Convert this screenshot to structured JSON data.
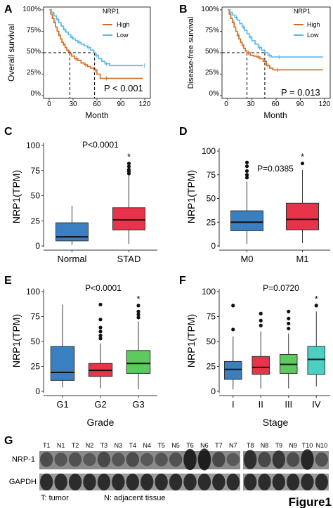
{
  "figure_label": "Figure1",
  "colors": {
    "high": "#d2691e",
    "low": "#5bb8e8",
    "normal": "#3a7fc1",
    "stad": "#e8334a",
    "m0": "#3a7fc1",
    "m1": "#e8334a",
    "g1": "#3a7fc1",
    "g2": "#e8334a",
    "g3": "#5ec95e",
    "stage1": "#3a7fc1",
    "stage2": "#e8334a",
    "stage3": "#5ec95e",
    "stage4": "#4dd0c4"
  },
  "chart_data": [
    {
      "panel": "A",
      "type": "line",
      "title": "",
      "legend_title": "NRP1",
      "legend_placement": "top-right",
      "xlabel": "Month",
      "ylabel": "Overall survival",
      "xlim": [
        0,
        120
      ],
      "ylim": [
        0,
        1
      ],
      "x_ticks": [
        "0",
        "30",
        "60",
        "90",
        "120"
      ],
      "y_ticks": [
        "0%",
        "25%",
        "50%",
        "75%",
        "100%"
      ],
      "annotation": "P < 0.001",
      "median_survival": {
        "High": 26,
        "Low": 57
      },
      "series": [
        {
          "name": "High",
          "x": [
            0,
            2,
            4,
            6,
            8,
            10,
            12,
            14,
            16,
            18,
            20,
            22,
            24,
            26,
            28,
            32,
            36,
            40,
            44,
            48,
            52,
            56,
            60,
            64,
            70,
            118
          ],
          "y": [
            1,
            0.95,
            0.9,
            0.85,
            0.8,
            0.75,
            0.7,
            0.66,
            0.62,
            0.59,
            0.56,
            0.53,
            0.51,
            0.49,
            0.46,
            0.43,
            0.41,
            0.38,
            0.36,
            0.34,
            0.32,
            0.3,
            0.25,
            0.2,
            0.2,
            0.2
          ]
        },
        {
          "name": "Low",
          "x": [
            0,
            3,
            6,
            9,
            12,
            15,
            18,
            21,
            24,
            27,
            30,
            33,
            36,
            40,
            44,
            48,
            52,
            56,
            58,
            62,
            66,
            70,
            76,
            82,
            118
          ],
          "y": [
            1,
            0.97,
            0.93,
            0.89,
            0.85,
            0.81,
            0.77,
            0.74,
            0.71,
            0.68,
            0.66,
            0.64,
            0.62,
            0.6,
            0.58,
            0.56,
            0.53,
            0.5,
            0.47,
            0.43,
            0.4,
            0.37,
            0.35,
            0.35,
            0.35
          ]
        }
      ]
    },
    {
      "panel": "B",
      "type": "line",
      "title": "",
      "legend_title": "NRP1",
      "legend_placement": "top-right",
      "xlabel": "Month",
      "ylabel": "Disease-free survival",
      "xlim": [
        0,
        120
      ],
      "ylim": [
        0,
        1
      ],
      "x_ticks": [
        "0",
        "30",
        "60",
        "90",
        "120"
      ],
      "y_ticks": [
        "0%",
        "25%",
        "50%",
        "75%",
        "100%"
      ],
      "annotation": "P = 0.013",
      "median_survival": {
        "High": 24,
        "Low": 46
      },
      "series": [
        {
          "name": "High",
          "x": [
            0,
            2,
            4,
            6,
            8,
            10,
            12,
            14,
            16,
            18,
            20,
            22,
            24,
            28,
            32,
            36,
            40,
            44,
            48,
            52,
            56,
            60,
            64,
            118
          ],
          "y": [
            1,
            0.95,
            0.9,
            0.85,
            0.8,
            0.75,
            0.7,
            0.66,
            0.62,
            0.58,
            0.55,
            0.52,
            0.5,
            0.47,
            0.46,
            0.45,
            0.43,
            0.4,
            0.35,
            0.32,
            0.3,
            0.3,
            0.3,
            0.3
          ]
        },
        {
          "name": "Low",
          "x": [
            0,
            3,
            6,
            9,
            12,
            15,
            18,
            21,
            24,
            27,
            30,
            34,
            38,
            42,
            46,
            50,
            54,
            58,
            62,
            70,
            118
          ],
          "y": [
            1,
            0.97,
            0.94,
            0.91,
            0.88,
            0.84,
            0.8,
            0.76,
            0.72,
            0.68,
            0.64,
            0.6,
            0.56,
            0.53,
            0.5,
            0.47,
            0.45,
            0.45,
            0.45,
            0.45,
            0.45
          ]
        }
      ]
    },
    {
      "panel": "C",
      "type": "box",
      "ylabel": "NRP1(TPM)",
      "xlabel": "",
      "ylim": [
        0,
        100
      ],
      "y_ticks": [
        "0",
        "25",
        "50",
        "75",
        "100"
      ],
      "annotation": "P<0.0001",
      "categories": [
        "Normal",
        "STAD"
      ],
      "boxes": [
        {
          "name": "Normal",
          "color_key": "normal",
          "min": 1,
          "q1": 5,
          "median": 9,
          "q3": 23,
          "max": 40,
          "outliers": [],
          "star": false
        },
        {
          "name": "STAD",
          "color_key": "stad",
          "min": 2,
          "q1": 16,
          "median": 26,
          "q3": 38,
          "max": 70,
          "outliers": [
            72,
            74,
            76,
            79,
            82
          ],
          "star": true
        }
      ]
    },
    {
      "panel": "D",
      "type": "box",
      "ylabel": "NRP1(TPM)",
      "xlabel": "",
      "ylim": [
        0,
        100
      ],
      "y_ticks": [
        "0",
        "25",
        "50",
        "75",
        "100"
      ],
      "annotation": "P=0.0385",
      "categories": [
        "M0",
        "M1"
      ],
      "boxes": [
        {
          "name": "M0",
          "color_key": "m0",
          "min": 2,
          "q1": 16,
          "median": 25,
          "q3": 37,
          "max": 68,
          "outliers": [
            72,
            75,
            79,
            84,
            88
          ],
          "star": false
        },
        {
          "name": "M1",
          "color_key": "m1",
          "min": 3,
          "q1": 17,
          "median": 28,
          "q3": 45,
          "max": 80,
          "outliers": [
            87
          ],
          "star": true
        }
      ]
    },
    {
      "panel": "E",
      "type": "box",
      "ylabel": "NRP1(TPM)",
      "xlabel": "Grade",
      "ylim": [
        0,
        100
      ],
      "y_ticks": [
        "0",
        "25",
        "50",
        "75",
        "100"
      ],
      "annotation": "P<0.0001",
      "categories": [
        "G1",
        "G2",
        "G3"
      ],
      "boxes": [
        {
          "name": "G1",
          "color_key": "g1",
          "min": 4,
          "q1": 11,
          "median": 19,
          "q3": 45,
          "max": 87,
          "outliers": [],
          "star": false
        },
        {
          "name": "G2",
          "color_key": "g2",
          "min": 3,
          "q1": 15,
          "median": 21,
          "q3": 28,
          "max": 48,
          "outliers": [
            53,
            56,
            60,
            64,
            72,
            87
          ],
          "star": false
        },
        {
          "name": "G3",
          "color_key": "g3",
          "min": 2,
          "q1": 18,
          "median": 28,
          "q3": 41,
          "max": 70,
          "outliers": [
            74,
            77,
            80,
            86
          ],
          "star": true
        }
      ]
    },
    {
      "panel": "F",
      "type": "box",
      "ylabel": "NRP1(TPM)",
      "xlabel": "Stage",
      "ylim": [
        0,
        100
      ],
      "y_ticks": [
        "0",
        "25",
        "50",
        "75",
        "100"
      ],
      "annotation": "P=0.0720",
      "categories": [
        "I",
        "II",
        "III",
        "IV"
      ],
      "boxes": [
        {
          "name": "I",
          "color_key": "stage1",
          "min": 2,
          "q1": 12,
          "median": 22,
          "q3": 30,
          "max": 55,
          "outliers": [
            62,
            86
          ],
          "star": false
        },
        {
          "name": "II",
          "color_key": "stage2",
          "min": 3,
          "q1": 17,
          "median": 24,
          "q3": 35,
          "max": 60,
          "outliers": [
            66,
            71,
            78
          ],
          "star": false
        },
        {
          "name": "III",
          "color_key": "stage3",
          "min": 3,
          "q1": 18,
          "median": 27,
          "q3": 37,
          "max": 58,
          "outliers": [
            63,
            68,
            73,
            80
          ],
          "star": false
        },
        {
          "name": "IV",
          "color_key": "stage4",
          "min": 5,
          "q1": 17,
          "median": 32,
          "q3": 45,
          "max": 80,
          "outliers": [
            86
          ],
          "star": true
        }
      ]
    },
    {
      "panel": "G",
      "type": "blot",
      "lane_labels_left": [
        "T1",
        "N1",
        "T2",
        "N2",
        "T3",
        "N3",
        "T4",
        "N4",
        "T5",
        "N5",
        "T6",
        "N6",
        "T7",
        "N7"
      ],
      "lane_labels_right": [
        "T8",
        "N8",
        "T9",
        "N9",
        "T10",
        "N10"
      ],
      "row_labels": [
        "NRP-1",
        "GAPDH"
      ],
      "legend": [
        "T: tumor",
        "N: adjacent tissue"
      ],
      "nrp1_intensity_left": [
        0.45,
        0.35,
        0.4,
        0.3,
        0.5,
        0.35,
        0.45,
        0.3,
        0.35,
        0.4,
        0.95,
        1.0,
        0.5,
        0.3
      ],
      "nrp1_intensity_right": [
        0.8,
        0.5,
        0.7,
        0.45,
        0.9,
        0.4
      ]
    }
  ]
}
